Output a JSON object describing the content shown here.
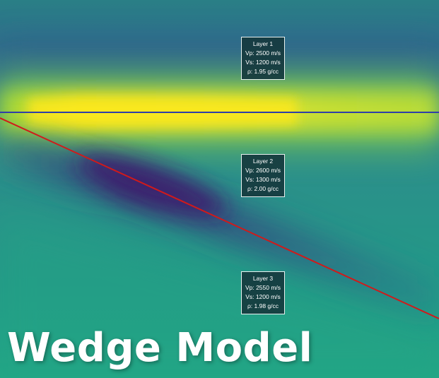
{
  "title": "Wedge Model",
  "layers": [
    {
      "name": "Layer 1",
      "vp": "Vp: 2500 m/s",
      "vs": "Vs: 1200 m/s",
      "rho": "ρ: 1.95 g/cc"
    },
    {
      "name": "Layer 2",
      "vp": "Vp: 2600 m/s",
      "vs": "Vs: 1300 m/s",
      "rho": "ρ: 2.00 g/cc"
    },
    {
      "name": "Layer 3",
      "vp": "Vp: 2550 m/s",
      "vs": "Vs: 1200 m/s",
      "rho": "ρ: 1.98 g/cc"
    }
  ],
  "colors": {
    "top_horizon": "#2f3fa8",
    "base_horizon": "#d11a1a",
    "background_low": "#2a7f86",
    "trough": "#3b1a6e",
    "peak": "#f3e31c"
  }
}
